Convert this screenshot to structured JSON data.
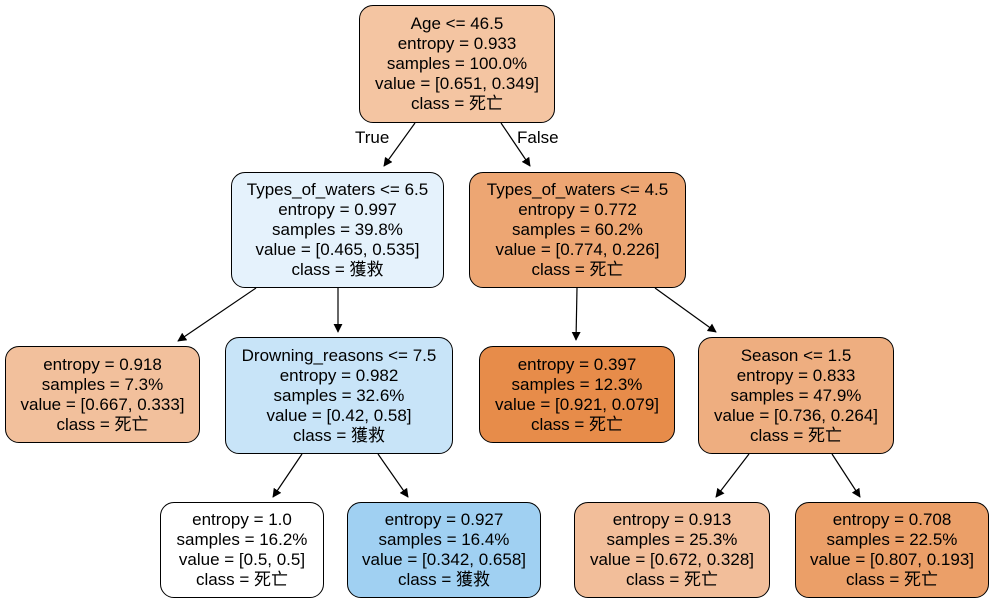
{
  "tree": {
    "nodes": [
      {
        "id": "n0",
        "lines": [
          "Age <= 46.5",
          "entropy = 0.933",
          "samples = 100.0%",
          "value = [0.651, 0.349]",
          "class = 死亡"
        ],
        "fill": "#f4c5a2"
      },
      {
        "id": "n1",
        "lines": [
          "Types_of_waters <= 6.5",
          "entropy = 0.997",
          "samples = 39.8%",
          "value = [0.465, 0.535]",
          "class = 獲救"
        ],
        "fill": "#e5f2fc"
      },
      {
        "id": "n2",
        "lines": [
          "Types_of_waters <= 4.5",
          "entropy = 0.772",
          "samples = 60.2%",
          "value = [0.774, 0.226]",
          "class = 死亡"
        ],
        "fill": "#eda673"
      },
      {
        "id": "n3",
        "lines": [
          "entropy = 0.918",
          "samples = 7.3%",
          "value = [0.667, 0.333]",
          "class = 死亡"
        ],
        "fill": "#f2c09c"
      },
      {
        "id": "n4",
        "lines": [
          "Drowning_reasons <= 7.5",
          "entropy = 0.982",
          "samples = 32.6%",
          "value = [0.42, 0.58]",
          "class = 獲救"
        ],
        "fill": "#c8e4f8"
      },
      {
        "id": "n5",
        "lines": [
          "entropy = 0.397",
          "samples = 12.3%",
          "value = [0.921, 0.079]",
          "class = 死亡"
        ],
        "fill": "#e78c4a"
      },
      {
        "id": "n6",
        "lines": [
          "Season <= 1.5",
          "entropy = 0.833",
          "samples = 47.9%",
          "value = [0.736, 0.264]",
          "class = 死亡"
        ],
        "fill": "#eeae80"
      },
      {
        "id": "n7",
        "lines": [
          "entropy = 1.0",
          "samples = 16.2%",
          "value = [0.5, 0.5]",
          "class = 死亡"
        ],
        "fill": "#ffffff"
      },
      {
        "id": "n8",
        "lines": [
          "entropy = 0.927",
          "samples = 16.4%",
          "value = [0.342, 0.658]",
          "class = 獲救"
        ],
        "fill": "#a0d0f2"
      },
      {
        "id": "n9",
        "lines": [
          "entropy = 0.913",
          "samples = 25.3%",
          "value = [0.672, 0.328]",
          "class = 死亡"
        ],
        "fill": "#f2be9a"
      },
      {
        "id": "n10",
        "lines": [
          "entropy = 0.708",
          "samples = 22.5%",
          "value = [0.807, 0.193]",
          "class = 死亡"
        ],
        "fill": "#eb9f68"
      }
    ],
    "edges": [
      {
        "from": "n0",
        "to": "n1",
        "label": "True"
      },
      {
        "from": "n0",
        "to": "n2",
        "label": "False"
      },
      {
        "from": "n1",
        "to": "n3"
      },
      {
        "from": "n1",
        "to": "n4"
      },
      {
        "from": "n2",
        "to": "n5"
      },
      {
        "from": "n2",
        "to": "n6"
      },
      {
        "from": "n4",
        "to": "n7"
      },
      {
        "from": "n4",
        "to": "n8"
      },
      {
        "from": "n6",
        "to": "n9"
      },
      {
        "from": "n6",
        "to": "n10"
      }
    ]
  }
}
